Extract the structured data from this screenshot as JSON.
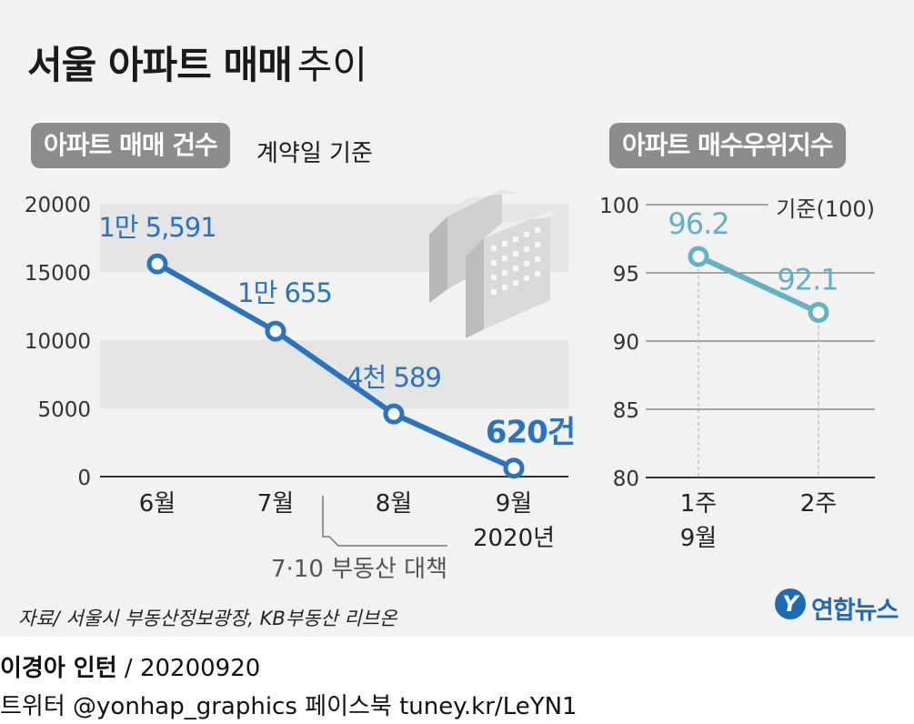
{
  "title": {
    "bold": "서울 아파트 매매",
    "light": "추이"
  },
  "left_panel": {
    "label": "아파트 매매 건수",
    "note": "계약일 기준"
  },
  "right_panel": {
    "label": "아파트 매수우위지수",
    "baseline_note": "기준(100)"
  },
  "policy_note": "7·10 부동산 대책",
  "chart_data": [
    {
      "type": "line",
      "title": "아파트 매매 건수",
      "subtitle": "계약일 기준",
      "categories": [
        "6월",
        "7월",
        "8월",
        "9월"
      ],
      "category_sublabel": "2020년",
      "values": [
        15591,
        10655,
        4589,
        620
      ],
      "data_labels": [
        "1만 5,591",
        "1만 655",
        "4천 589",
        "620건"
      ],
      "yticks": [
        0,
        5000,
        10000,
        15000,
        20000
      ],
      "ylim": [
        0,
        20000
      ],
      "series_color": "#2a73be",
      "grid": "alternating bands",
      "annotation": "7·10 부동산 대책"
    },
    {
      "type": "line",
      "title": "아파트 매수우위지수",
      "categories": [
        "1주",
        "2주"
      ],
      "category_sublabel": "9월",
      "values": [
        96.2,
        92.1
      ],
      "data_labels": [
        "96.2",
        "92.1"
      ],
      "yticks": [
        80,
        85,
        90,
        95,
        100
      ],
      "ylim": [
        80,
        100
      ],
      "reference_line": {
        "value": 100,
        "label": "기준(100)"
      },
      "series_color": "#63b1c6",
      "grid": "horizontal lines"
    }
  ],
  "source": "자료/ 서울시 부동산정보광장, KB부동산 리브온",
  "logo": {
    "text": "연합뉴스",
    "mark": "Y"
  },
  "credit": {
    "author": "이경아 인턴",
    "date": " / 20200920",
    "social": "트위터 @yonhap_graphics  페이스북 tuney.kr/LeYN1"
  },
  "colors": {
    "left_series": "#2a73be",
    "right_series": "#63b1c6",
    "pill_bg": "#8c8c8c",
    "panel_bg": "#f2f2f2"
  }
}
